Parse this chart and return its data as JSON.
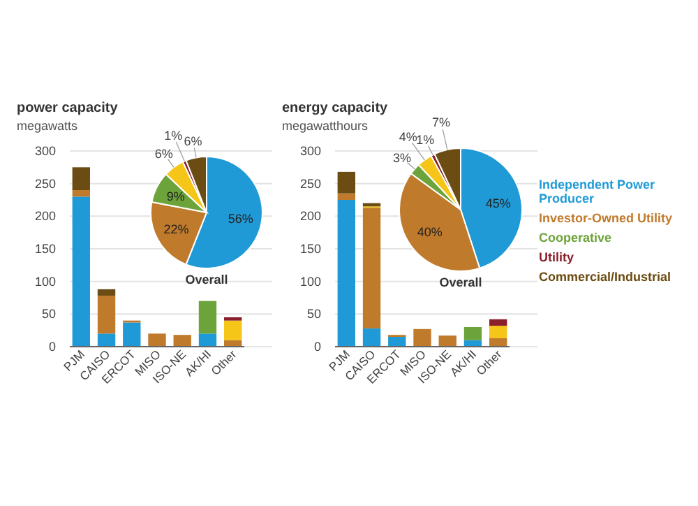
{
  "chart_data": [
    {
      "type": "bar",
      "title": "power capacity",
      "subtitle": "megawatts",
      "stacked": true,
      "categories": [
        "PJM",
        "CAISO",
        "ERCOT",
        "MISO",
        "ISO-NE",
        "AK/HI",
        "Other"
      ],
      "ylim": [
        0,
        300
      ],
      "yticks": [
        0,
        50,
        100,
        150,
        200,
        250,
        300
      ],
      "grid": "y",
      "legend": "right",
      "series": [
        {
          "name": "Independent Power Producer",
          "color": "#1f9ad6",
          "values": [
            230,
            20,
            37,
            0,
            0,
            20,
            0
          ]
        },
        {
          "name": "Investor-Owned Utility",
          "color": "#c07a2c",
          "values": [
            10,
            58,
            3,
            20,
            18,
            0,
            10
          ]
        },
        {
          "name": "Cooperative",
          "color": "#6ca33a",
          "values": [
            0,
            0,
            0,
            0,
            0,
            50,
            0
          ]
        },
        {
          "color": "#f5c518",
          "values": [
            0,
            0,
            0,
            0,
            0,
            0,
            30
          ]
        },
        {
          "name": "Utility",
          "color": "#8b1e2b",
          "values": [
            0,
            0,
            0,
            0,
            0,
            0,
            5
          ]
        },
        {
          "name": "Commercial/Industrial",
          "color": "#6b4c12",
          "values": [
            35,
            10,
            0,
            0,
            0,
            0,
            0
          ]
        }
      ]
    },
    {
      "type": "pie",
      "title": "Overall",
      "categories": [
        null,
        null,
        null,
        null,
        null,
        null
      ],
      "values": [
        56,
        22,
        9,
        6,
        1,
        6
      ],
      "colors": [
        "#1f9ad6",
        "#c07a2c",
        "#6ca33a",
        "#f5c518",
        "#8b1e2b",
        "#6b4c12"
      ],
      "value_labels": [
        "56%",
        "22%",
        "9%",
        "6%",
        "1%",
        "6%"
      ]
    },
    {
      "type": "bar",
      "title": "energy capacity",
      "subtitle": "megawatthours",
      "stacked": true,
      "categories": [
        "PJM",
        "CAISO",
        "ERCOT",
        "MISO",
        "ISO-NE",
        "AK/HI",
        "Other"
      ],
      "ylim": [
        0,
        300
      ],
      "yticks": [
        0,
        50,
        100,
        150,
        200,
        250,
        300
      ],
      "grid": "y",
      "series": [
        {
          "color": "#1f9ad6",
          "values": [
            225,
            28,
            15,
            0,
            0,
            10,
            0
          ]
        },
        {
          "color": "#c07a2c",
          "values": [
            10,
            185,
            3,
            27,
            17,
            0,
            13
          ]
        },
        {
          "color": "#6ca33a",
          "values": [
            0,
            0,
            0,
            0,
            0,
            20,
            0
          ]
        },
        {
          "color": "#f5c518",
          "values": [
            0,
            2,
            0,
            0,
            0,
            0,
            19
          ]
        },
        {
          "color": "#8b1e2b",
          "values": [
            0,
            0,
            0,
            0,
            0,
            0,
            10
          ]
        },
        {
          "color": "#6b4c12",
          "values": [
            33,
            5,
            0,
            0,
            0,
            0,
            0
          ]
        }
      ]
    },
    {
      "type": "pie",
      "title": "Overall",
      "categories": [
        null,
        null,
        null,
        null,
        null,
        null
      ],
      "values": [
        45,
        40,
        3,
        4,
        1,
        7
      ],
      "colors": [
        "#1f9ad6",
        "#c07a2c",
        "#6ca33a",
        "#f5c518",
        "#8b1e2b",
        "#6b4c12"
      ],
      "value_labels": [
        "45%",
        "40%",
        "3%",
        "4%",
        "1%",
        "7%"
      ]
    }
  ]
}
